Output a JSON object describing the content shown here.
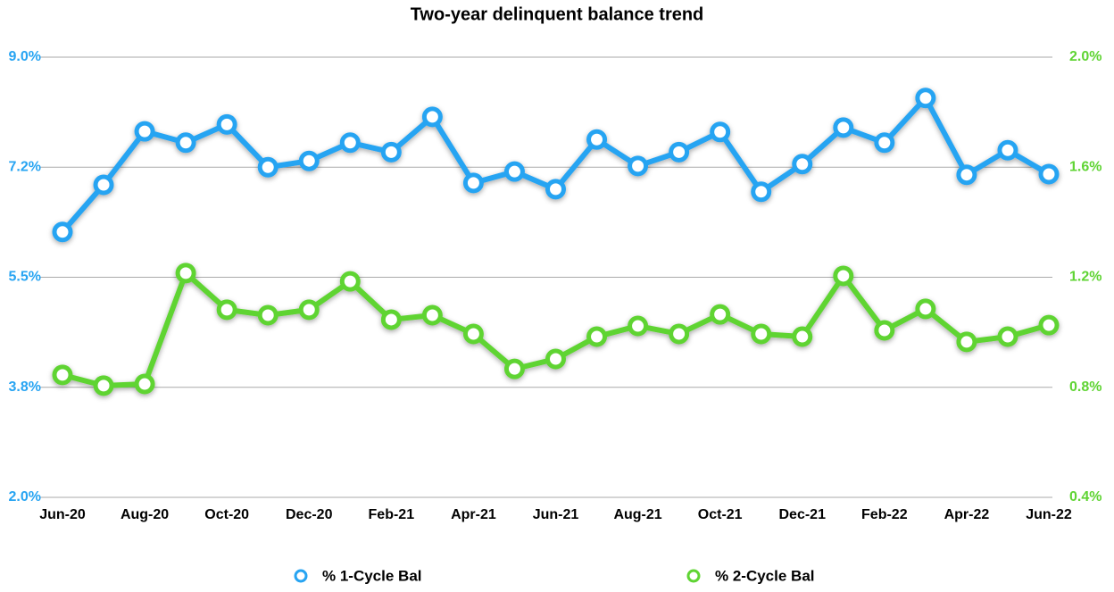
{
  "chart_data": {
    "type": "line",
    "title": "Two-year delinquent balance trend",
    "categories": [
      "Jun-20",
      null,
      "Aug-20",
      null,
      "Oct-20",
      null,
      "Dec-20",
      null,
      "Feb-21",
      null,
      "Apr-21",
      null,
      "Jun-21",
      null,
      "Aug-21",
      null,
      "Oct-21",
      null,
      "Dec-21",
      null,
      "Feb-22",
      null,
      "Apr-22",
      null,
      "Jun-22"
    ],
    "ylim": [
      2.0,
      9.0
    ],
    "yticks": [
      {
        "value": 2.0,
        "label": "2.0%"
      },
      {
        "value": 3.75,
        "label": "3.8%"
      },
      {
        "value": 5.5,
        "label": "5.5%"
      },
      {
        "value": 7.25,
        "label": "7.2%"
      },
      {
        "value": 9.0,
        "label": "9.0%"
      }
    ],
    "y2lim": [
      0.4,
      2.0
    ],
    "y2ticks": [
      {
        "value": 0.4,
        "label": "0.4%"
      },
      {
        "value": 0.8,
        "label": "0.8%"
      },
      {
        "value": 1.2,
        "label": "1.2%"
      },
      {
        "value": 1.6,
        "label": "1.6%"
      },
      {
        "value": 2.0,
        "label": "2.0%"
      }
    ],
    "grid": true,
    "legend": "bottom",
    "series": [
      {
        "name": "% 1-Cycle Bal",
        "color": "#27a4f2",
        "values": [
          6.22,
          6.97,
          7.82,
          7.64,
          7.93,
          7.25,
          7.35,
          7.64,
          7.49,
          8.05,
          7.0,
          7.18,
          6.9,
          7.69,
          7.27,
          7.49,
          7.81,
          6.86,
          7.3,
          7.88,
          7.64,
          8.35,
          7.13,
          7.52,
          7.14
        ]
      },
      {
        "name": "% 2-Cycle Bal",
        "color": "#5fd433",
        "axis": "y2",
        "values": [
          0.845,
          0.806,
          0.812,
          1.215,
          1.082,
          1.062,
          1.082,
          1.185,
          1.046,
          1.062,
          0.994,
          0.867,
          0.903,
          0.984,
          1.023,
          0.994,
          1.065,
          0.994,
          0.984,
          1.205,
          1.007,
          1.085,
          0.965,
          0.984,
          1.026
        ]
      }
    ]
  }
}
